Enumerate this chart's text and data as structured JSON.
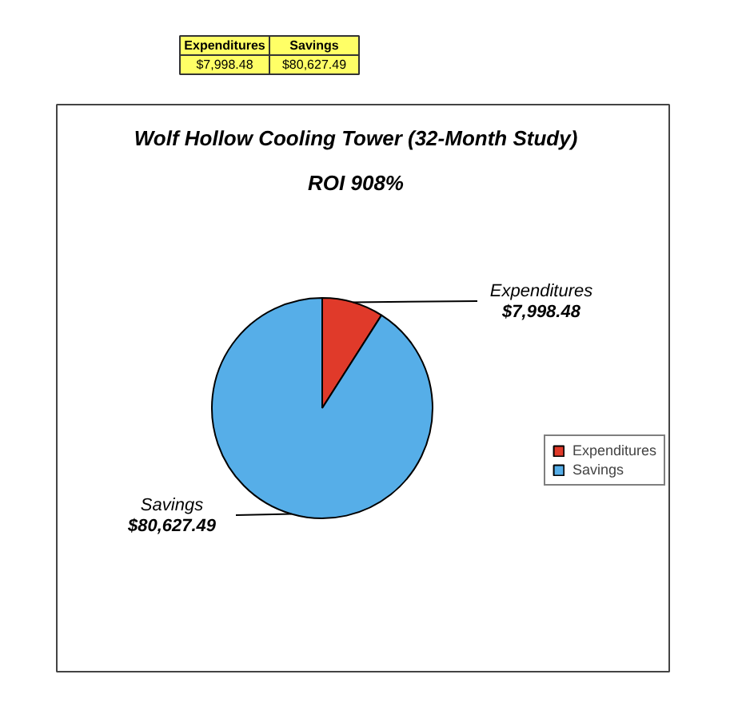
{
  "chart_data": {
    "type": "pie",
    "title": "Wolf Hollow Cooling Tower (32-Month Study)",
    "subtitle": "ROI 908%",
    "categories": [
      "Expenditures",
      "Savings"
    ],
    "values": [
      7998.48,
      80627.49
    ],
    "colors": [
      "#e03a2a",
      "#56aee8"
    ],
    "value_labels": [
      "$7,998.48",
      "$80,627.49"
    ],
    "legend": "right",
    "annotations": [
      "Expenditures",
      "Savings",
      "$7,998.48",
      "$80,627.49"
    ]
  }
}
